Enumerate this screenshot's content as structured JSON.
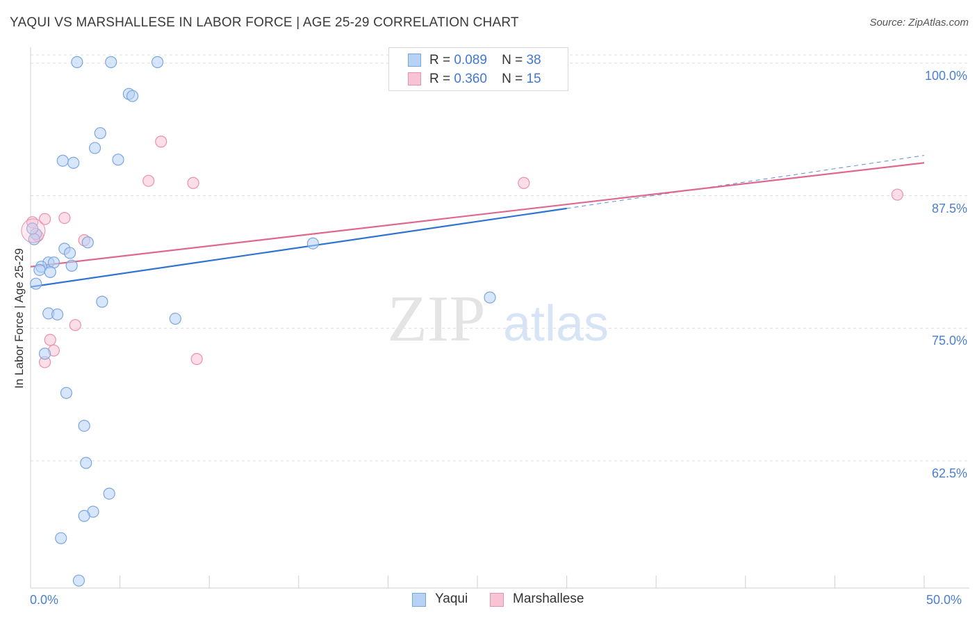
{
  "title": "YAQUI VS MARSHALLESE IN LABOR FORCE | AGE 25-29 CORRELATION CHART",
  "source": "Source: ZipAtlas.com",
  "watermark": {
    "zip": "ZIP",
    "atlas": "atlas"
  },
  "legend": {
    "r_label": "R =",
    "n_label": "N =",
    "rows": [
      {
        "r": "0.089",
        "n": "38"
      },
      {
        "r": "0.360",
        "n": "15"
      }
    ]
  },
  "colors": {
    "yaqui_fill": "#b7d2f5",
    "yaqui_stroke": "#7aa6e0",
    "yaqui_line": "#2f74d0",
    "marsh_fill": "#f8c3d3",
    "marsh_stroke": "#ea90ad",
    "marsh_line": "#e0678f",
    "tick_text": "#4a7fd1"
  },
  "chart_data": {
    "type": "scatter",
    "title": "YAQUI VS MARSHALLESE IN LABOR FORCE | AGE 25-29 CORRELATION CHART",
    "xlabel": "",
    "ylabel": "In Labor Force | Age 25-29",
    "xlim": [
      0,
      50
    ],
    "ylim": [
      50.5,
      101.5
    ],
    "x_tick_labels": [
      "0.0%",
      "50.0%"
    ],
    "y_ticks": [
      {
        "value": 62.5,
        "label": "62.5%"
      },
      {
        "value": 75.0,
        "label": "75.0%"
      },
      {
        "value": 87.5,
        "label": "87.5%"
      },
      {
        "value": 100.0,
        "label": "100.0%"
      }
    ],
    "series": [
      {
        "name": "Yaqui",
        "r": 0.089,
        "n": 38,
        "points": [
          {
            "x": 2.6,
            "y": 100.1
          },
          {
            "x": 4.5,
            "y": 100.1
          },
          {
            "x": 7.1,
            "y": 100.1
          },
          {
            "x": 5.5,
            "y": 97.1
          },
          {
            "x": 5.7,
            "y": 96.9
          },
          {
            "x": 3.9,
            "y": 93.4
          },
          {
            "x": 3.6,
            "y": 92.0
          },
          {
            "x": 1.8,
            "y": 90.8
          },
          {
            "x": 2.4,
            "y": 90.6
          },
          {
            "x": 4.9,
            "y": 90.9
          },
          {
            "x": 0.3,
            "y": 83.9
          },
          {
            "x": 0.2,
            "y": 83.4
          },
          {
            "x": 3.2,
            "y": 83.1
          },
          {
            "x": 1.9,
            "y": 82.5
          },
          {
            "x": 2.2,
            "y": 82.1
          },
          {
            "x": 1.0,
            "y": 81.2
          },
          {
            "x": 1.3,
            "y": 81.2
          },
          {
            "x": 2.3,
            "y": 80.9
          },
          {
            "x": 0.6,
            "y": 80.8
          },
          {
            "x": 0.5,
            "y": 80.5
          },
          {
            "x": 1.1,
            "y": 80.3
          },
          {
            "x": 0.3,
            "y": 79.2
          },
          {
            "x": 4.0,
            "y": 77.5
          },
          {
            "x": 1.0,
            "y": 76.4
          },
          {
            "x": 1.5,
            "y": 76.3
          },
          {
            "x": 8.1,
            "y": 75.9
          },
          {
            "x": 0.8,
            "y": 72.6
          },
          {
            "x": 2.0,
            "y": 68.9
          },
          {
            "x": 3.0,
            "y": 65.8
          },
          {
            "x": 3.1,
            "y": 62.3
          },
          {
            "x": 4.4,
            "y": 59.4
          },
          {
            "x": 3.5,
            "y": 57.7
          },
          {
            "x": 3.0,
            "y": 57.3
          },
          {
            "x": 1.7,
            "y": 55.2
          },
          {
            "x": 2.7,
            "y": 51.2
          },
          {
            "x": 15.8,
            "y": 83.0
          },
          {
            "x": 25.7,
            "y": 77.9
          },
          {
            "x": 0.1,
            "y": 84.4
          }
        ],
        "trend": {
          "x0": 0,
          "y0": 78.9,
          "x1": 30,
          "y1": 86.3,
          "dashed_to_x": 50,
          "dashed_to_y": 91.3
        }
      },
      {
        "name": "Marshallese",
        "r": 0.36,
        "n": 15,
        "points": [
          {
            "x": 7.3,
            "y": 92.6
          },
          {
            "x": 6.6,
            "y": 88.9
          },
          {
            "x": 9.1,
            "y": 88.7
          },
          {
            "x": 27.6,
            "y": 88.7
          },
          {
            "x": 48.5,
            "y": 87.6
          },
          {
            "x": 0.1,
            "y": 85.0
          },
          {
            "x": 0.8,
            "y": 85.3
          },
          {
            "x": 1.9,
            "y": 85.4
          },
          {
            "x": 0.4,
            "y": 83.7
          },
          {
            "x": 3.0,
            "y": 83.3
          },
          {
            "x": 2.5,
            "y": 75.3
          },
          {
            "x": 1.1,
            "y": 73.9
          },
          {
            "x": 1.3,
            "y": 72.9
          },
          {
            "x": 0.8,
            "y": 71.8
          },
          {
            "x": 9.3,
            "y": 72.1
          }
        ],
        "trend": {
          "x0": 0,
          "y0": 80.8,
          "x1": 50,
          "y1": 90.6
        }
      }
    ]
  },
  "bottom_legend": [
    "Yaqui",
    "Marshallese"
  ]
}
